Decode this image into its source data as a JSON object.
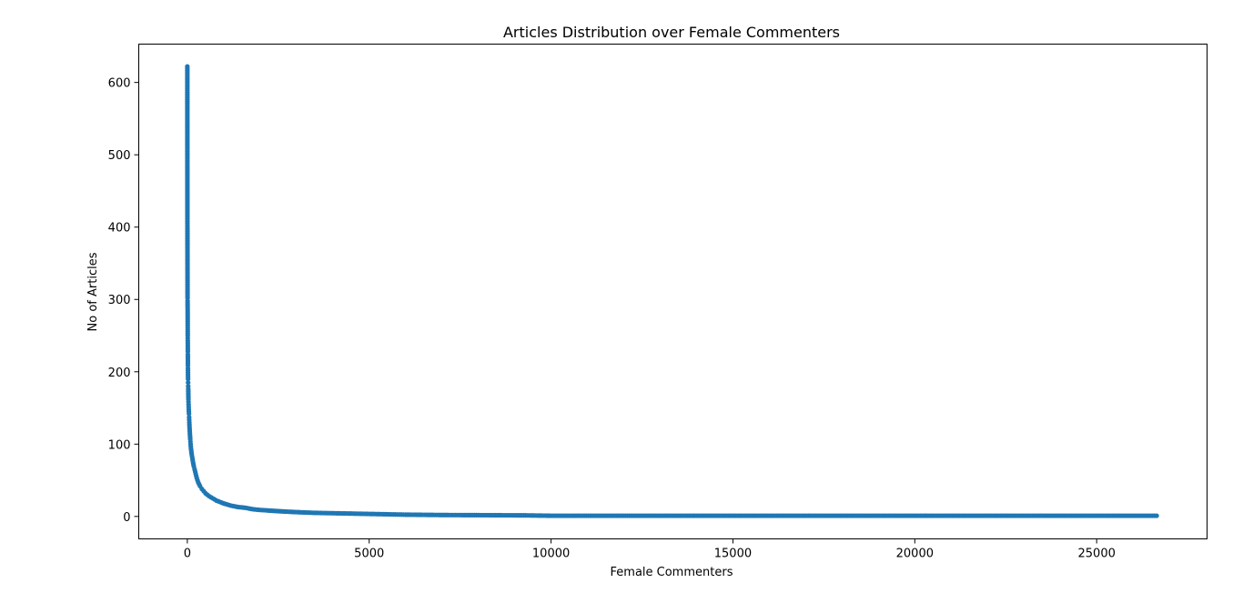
{
  "chart_data": {
    "type": "scatter",
    "title": "Articles Distribution over Female Commenters",
    "xlabel": "Female Commenters",
    "ylabel": "No of Articles",
    "xlim": [
      -1335,
      28035
    ],
    "ylim": [
      -31,
      653
    ],
    "xticks": [
      0,
      5000,
      10000,
      15000,
      20000,
      25000
    ],
    "yticks": [
      0,
      100,
      200,
      300,
      400,
      500,
      600
    ],
    "xtick_labels": [
      "0",
      "5000",
      "10000",
      "15000",
      "20000",
      "25000"
    ],
    "ytick_labels": [
      "0",
      "100",
      "200",
      "300",
      "400",
      "500",
      "600"
    ],
    "grid": false,
    "legend": "none",
    "marker_color": "#1f77b4",
    "series": [
      {
        "points": [
          [
            0,
            622
          ],
          [
            1,
            479
          ],
          [
            2,
            411
          ],
          [
            3,
            399
          ],
          [
            4,
            366
          ],
          [
            5,
            337
          ],
          [
            6,
            302
          ],
          [
            7,
            298
          ],
          [
            8,
            290
          ],
          [
            9,
            287
          ],
          [
            10,
            270
          ],
          [
            11,
            250
          ],
          [
            12,
            243
          ],
          [
            13,
            240
          ],
          [
            14,
            228
          ],
          [
            15,
            224
          ],
          [
            16,
            209
          ],
          [
            17,
            205
          ],
          [
            18,
            199
          ],
          [
            20,
            190
          ],
          [
            22,
            185
          ],
          [
            24,
            180
          ],
          [
            26,
            176
          ],
          [
            28,
            170
          ],
          [
            30,
            162
          ],
          [
            35,
            155
          ],
          [
            40,
            148
          ],
          [
            45,
            142
          ],
          [
            50,
            137
          ],
          [
            55,
            130
          ],
          [
            60,
            124
          ],
          [
            70,
            115
          ],
          [
            80,
            107
          ],
          [
            90,
            100
          ],
          [
            100,
            94
          ],
          [
            120,
            86
          ],
          [
            140,
            80
          ],
          [
            160,
            74
          ],
          [
            180,
            69
          ],
          [
            200,
            65
          ],
          [
            230,
            59
          ],
          [
            260,
            53
          ],
          [
            300,
            47
          ],
          [
            350,
            42
          ],
          [
            400,
            38
          ],
          [
            450,
            35
          ],
          [
            500,
            32
          ],
          [
            600,
            28
          ],
          [
            700,
            25
          ],
          [
            800,
            22
          ],
          [
            900,
            20
          ],
          [
            1000,
            18
          ],
          [
            1200,
            15
          ],
          [
            1400,
            13
          ],
          [
            1600,
            12
          ],
          [
            1800,
            10
          ],
          [
            2000,
            9
          ],
          [
            2300,
            8
          ],
          [
            2600,
            7
          ],
          [
            3000,
            6
          ],
          [
            3500,
            5
          ],
          [
            4000,
            4.5
          ],
          [
            4500,
            4
          ],
          [
            5000,
            3.5
          ],
          [
            5500,
            3
          ],
          [
            6000,
            2.5
          ],
          [
            7000,
            2
          ],
          [
            8000,
            1.8
          ],
          [
            9300,
            1.5
          ],
          [
            10000,
            1
          ],
          [
            12000,
            1
          ],
          [
            14000,
            1
          ],
          [
            16000,
            1
          ],
          [
            18000,
            1
          ],
          [
            20000,
            1
          ],
          [
            22000,
            1
          ],
          [
            24000,
            1
          ],
          [
            26000,
            1
          ],
          [
            26650,
            1
          ]
        ]
      }
    ]
  }
}
